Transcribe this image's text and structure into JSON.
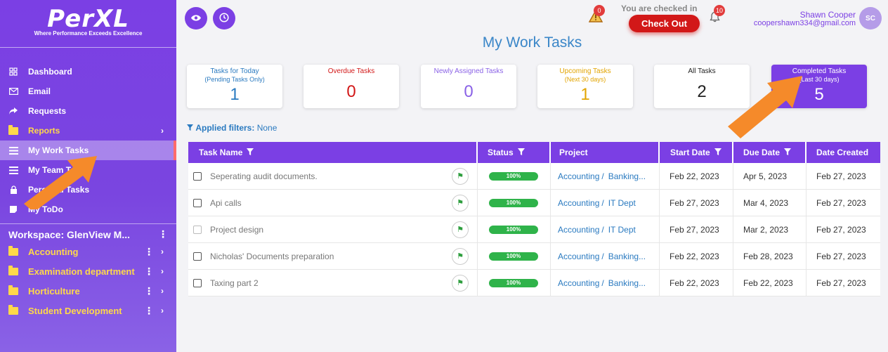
{
  "brand": {
    "logo_text": "PerXL",
    "tagline": "Where Performance Exceeds Excellence"
  },
  "sidebar": {
    "items": [
      {
        "label": "Dashboard",
        "icon": "grid-icon"
      },
      {
        "label": "Email",
        "icon": "mail-icon"
      },
      {
        "label": "Requests",
        "icon": "share-arrow-icon"
      },
      {
        "label": "Reports",
        "icon": "folder-icon"
      },
      {
        "label": "My Work Tasks",
        "icon": "list-icon"
      },
      {
        "label": "My Team Tasks",
        "icon": "list-icon"
      },
      {
        "label": "Personal Tasks",
        "icon": "lock-icon"
      },
      {
        "label": "My ToDo",
        "icon": "note-icon"
      }
    ],
    "workspace_title": "Workspace: GlenView M...",
    "workspace_items": [
      {
        "label": "Accounting"
      },
      {
        "label": "Examination department"
      },
      {
        "label": "Horticulture"
      },
      {
        "label": "Student Development"
      }
    ]
  },
  "header": {
    "alert_count": "0",
    "checked_in_text": "You are checked in",
    "checkout_label": "Check Out",
    "notification_count": "10",
    "user_name": "Shawn Cooper",
    "user_email": "coopershawn334@gmail.com",
    "avatar_initials": "SC"
  },
  "page_title": "My Work Tasks",
  "cards": [
    {
      "label": "Tasks for Today",
      "sub": "(Pending Tasks Only)",
      "value": "1",
      "color": "#2a7ac0"
    },
    {
      "label": "Overdue Tasks",
      "sub": "",
      "value": "0",
      "color": "#d21818"
    },
    {
      "label": "Newly Assigned Tasks",
      "sub": "",
      "value": "0",
      "color": "#8a62e6"
    },
    {
      "label": "Upcoming Tasks",
      "sub": "(Next 30 days)",
      "value": "1",
      "color": "#e2a400"
    },
    {
      "label": "All Tasks",
      "sub": "",
      "value": "2",
      "color": "#222222"
    },
    {
      "label": "Completed Tasks",
      "sub": "(Last 30 days)",
      "value": "5",
      "color": "#ffffff"
    }
  ],
  "filters": {
    "label": "Applied filters:",
    "value": "None"
  },
  "table": {
    "columns": [
      "Task Name",
      "Status",
      "Project",
      "Start Date",
      "Due Date",
      "Date Created"
    ],
    "rows": [
      {
        "name": "Seperating audit documents.",
        "status": "100%",
        "project_a": "Accounting",
        "project_b": "Banking...",
        "start": "Feb 22, 2023",
        "due": "Apr 5, 2023",
        "created": "Feb 27, 2023"
      },
      {
        "name": "Api calls",
        "status": "100%",
        "project_a": "Accounting",
        "project_b": "IT Dept",
        "start": "Feb 27, 2023",
        "due": "Mar 4, 2023",
        "created": "Feb 27, 2023"
      },
      {
        "name": "Project design",
        "status": "100%",
        "project_a": "Accounting",
        "project_b": "IT Dept",
        "start": "Feb 27, 2023",
        "due": "Mar 2, 2023",
        "created": "Feb 27, 2023"
      },
      {
        "name": "Nicholas' Documents preparation",
        "status": "100%",
        "project_a": "Accounting",
        "project_b": "Banking...",
        "start": "Feb 22, 2023",
        "due": "Feb 28, 2023",
        "created": "Feb 27, 2023"
      },
      {
        "name": "Taxing part 2",
        "status": "100%",
        "project_a": "Accounting",
        "project_b": "Banking...",
        "start": "Feb 22, 2023",
        "due": "Feb 22, 2023",
        "created": "Feb 27, 2023"
      }
    ]
  },
  "colors": {
    "brand": "#7b3fe4",
    "accent_yellow": "#ffd84a",
    "link_blue": "#2a7ac0",
    "status_green": "#2fb34a",
    "arrow_orange": "#f58a2a"
  }
}
